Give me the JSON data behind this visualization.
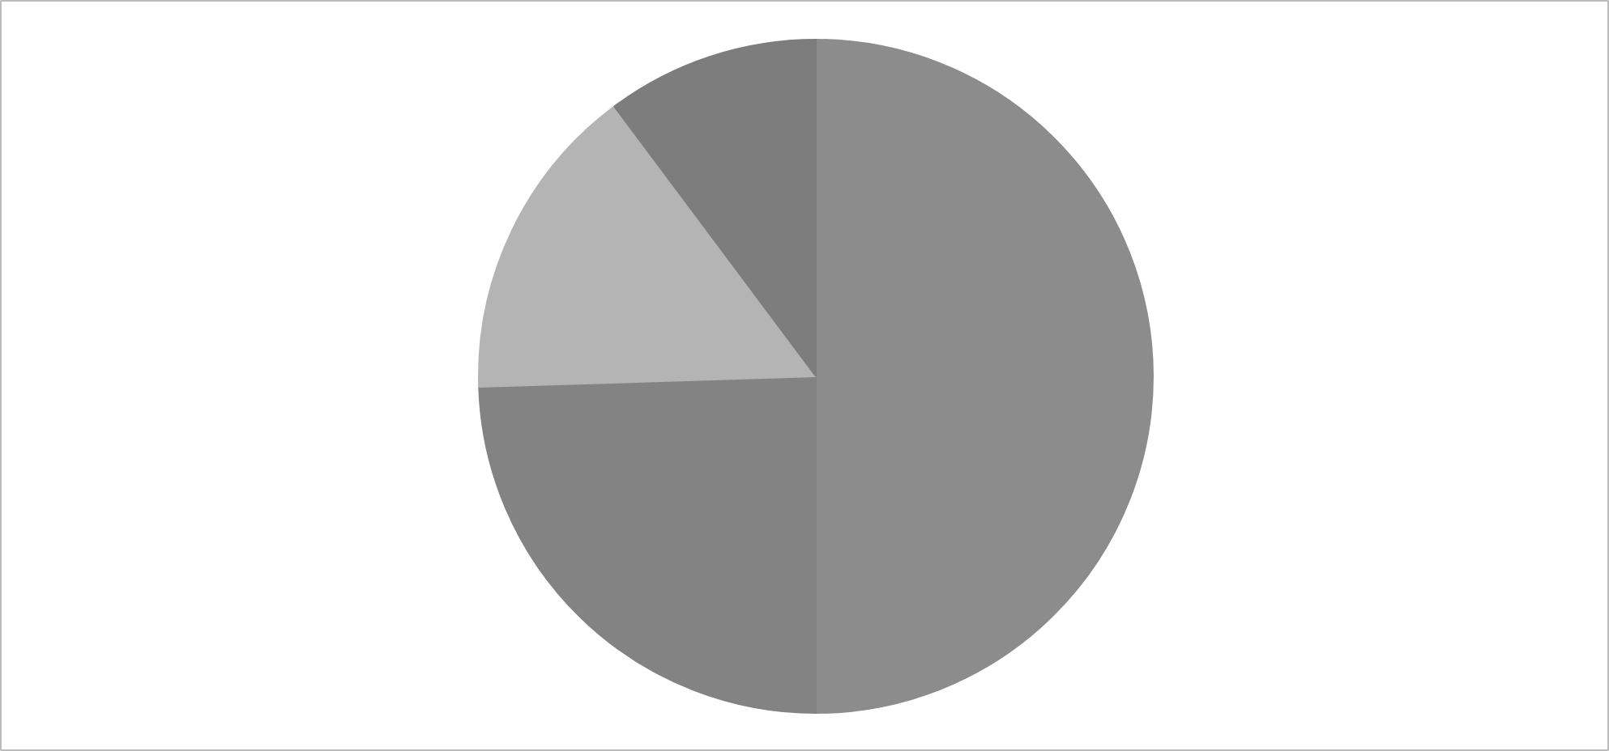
{
  "chart_data": {
    "type": "pie",
    "categories": [
      null,
      null,
      null,
      null
    ],
    "values": [
      50,
      24.5,
      15.3,
      10.2
    ],
    "colors": [
      "#8c8c8c",
      "#838383",
      "#b4b4b4",
      "#7d7d7d"
    ]
  }
}
